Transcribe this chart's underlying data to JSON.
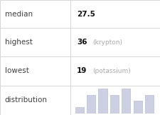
{
  "rows": [
    {
      "label": "median",
      "value": "27.5",
      "note": ""
    },
    {
      "label": "highest",
      "value": "36",
      "note": "(krypton)"
    },
    {
      "label": "lowest",
      "value": "19",
      "note": "(potassium)"
    },
    {
      "label": "distribution",
      "value": "",
      "note": ""
    }
  ],
  "bar_heights": [
    1,
    3,
    4,
    3,
    4,
    2,
    3
  ],
  "bar_color": "#cdd0e3",
  "bar_edge_color": "#b8bcd4",
  "table_line_color": "#d0d0d0",
  "bg_color": "#ffffff",
  "label_color": "#404040",
  "value_color": "#111111",
  "note_color": "#aaaaaa",
  "label_fontsize": 7.5,
  "value_fontsize": 7.5,
  "note_fontsize": 6.5,
  "col_div": 0.44,
  "row_tops": [
    1.0,
    0.755,
    0.51,
    0.255
  ],
  "row_bottoms": [
    0.755,
    0.51,
    0.255,
    0.0
  ]
}
